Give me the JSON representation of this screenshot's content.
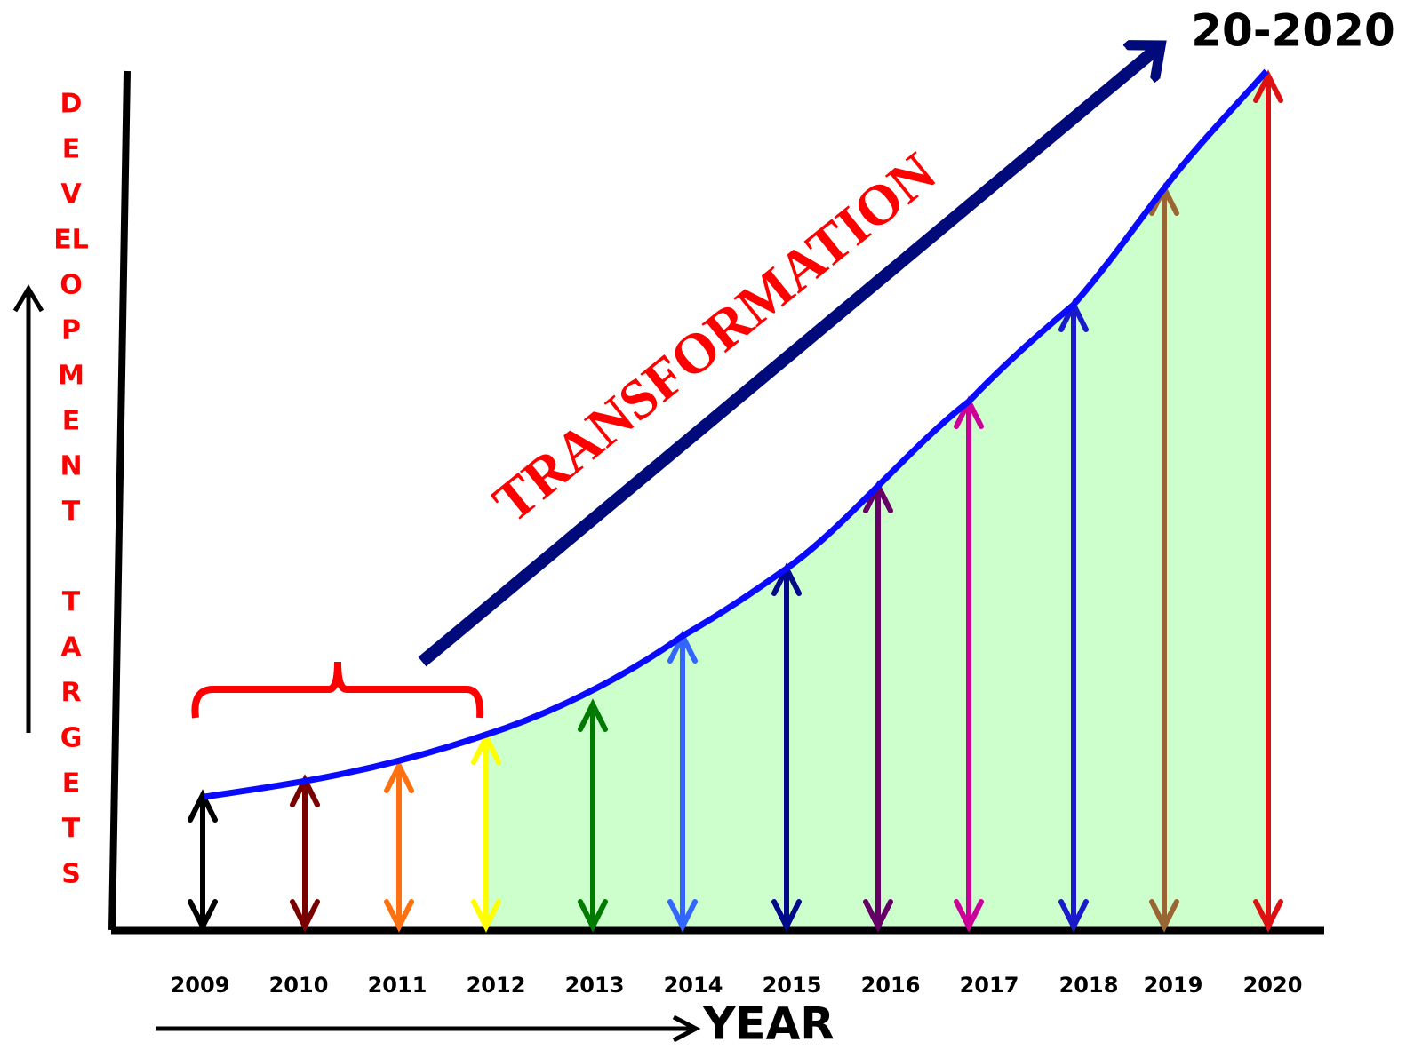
{
  "title": "20-2020",
  "y_label": {
    "word1": [
      "D",
      "E",
      "V",
      "EL",
      "O",
      "P",
      "M",
      "E",
      "N",
      "T"
    ],
    "word2": [
      "T",
      "A",
      "R",
      "G",
      "E",
      "T",
      "S"
    ]
  },
  "annotation": "TRANSFORMATION",
  "x_label": "YEAR",
  "years": [
    "2009",
    "2010",
    "2011",
    "2012",
    "2013",
    "2014",
    "2015",
    "2016",
    "2017",
    "2018",
    "2019",
    "2020"
  ]
}
